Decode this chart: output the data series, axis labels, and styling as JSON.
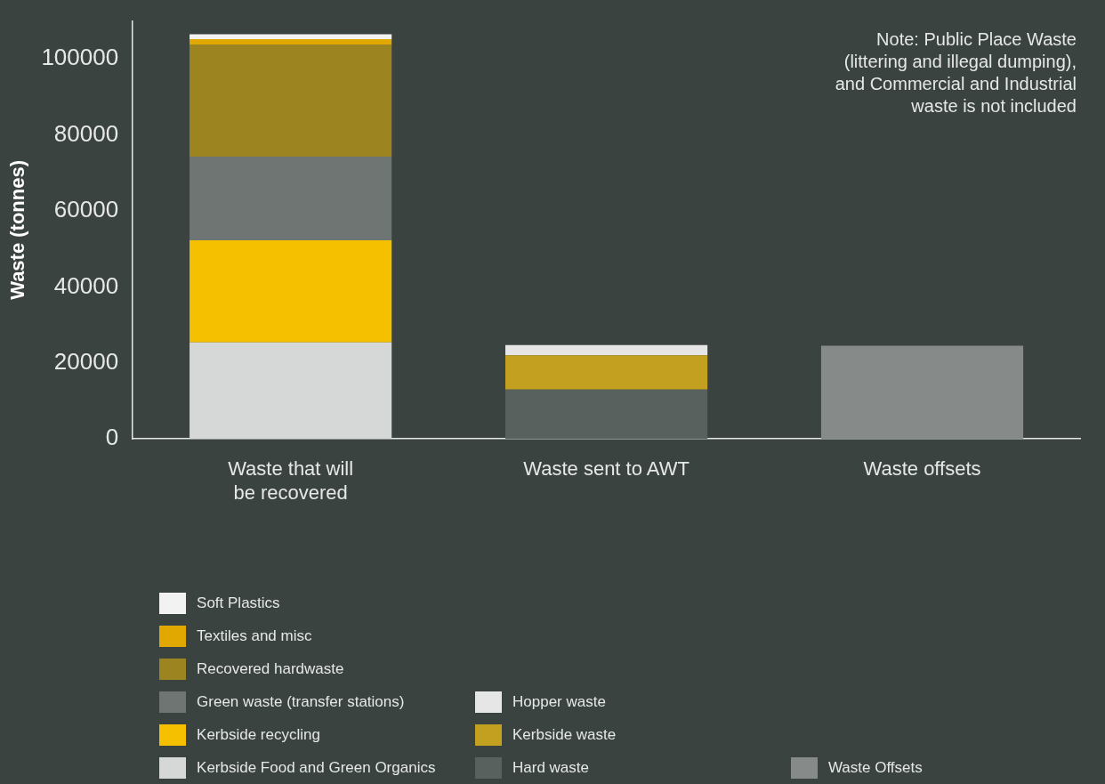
{
  "chart_data": {
    "type": "bar",
    "stacked": true,
    "ylabel": "Waste (tonnes)",
    "categories": [
      "Waste that will be recovered",
      "Waste sent to AWT",
      "Waste offsets"
    ],
    "series": [
      {
        "name": "Kerbside Food and Green Organics",
        "color": "#d6d8d7",
        "values": [
          25400,
          null,
          null
        ]
      },
      {
        "name": "Kerbside recycling",
        "color": "#f5c000",
        "values": [
          26900,
          null,
          null
        ]
      },
      {
        "name": "Green waste (transfer stations)",
        "color": "#6e7572",
        "values": [
          22000,
          null,
          null
        ]
      },
      {
        "name": "Recovered hardwaste",
        "color": "#9c8420",
        "values": [
          29500,
          null,
          null
        ]
      },
      {
        "name": "Textiles and misc",
        "color": "#e0a800",
        "values": [
          1400,
          null,
          null
        ]
      },
      {
        "name": "Soft Plastics",
        "color": "#f2f2f2",
        "values": [
          1300,
          null,
          null
        ]
      },
      {
        "name": "Hard waste",
        "color": "#59615e",
        "values": [
          null,
          13000,
          null
        ]
      },
      {
        "name": "Kerbside waste",
        "color": "#c4a020",
        "values": [
          null,
          9000,
          null
        ]
      },
      {
        "name": "Hopper waste",
        "color": "#e6e6e6",
        "values": [
          null,
          2700,
          null
        ]
      },
      {
        "name": "Waste Offsets",
        "color": "#868b89",
        "values": [
          null,
          null,
          24500
        ]
      }
    ],
    "ylim": [
      0,
      110000
    ],
    "yticks": [
      0,
      20000,
      40000,
      60000,
      80000,
      100000
    ],
    "grid": false,
    "legend": "bottom",
    "annotations": [
      "Note: Public Place Waste (littering and illegal dumping), and Commercial and Industrial waste is not included"
    ]
  }
}
